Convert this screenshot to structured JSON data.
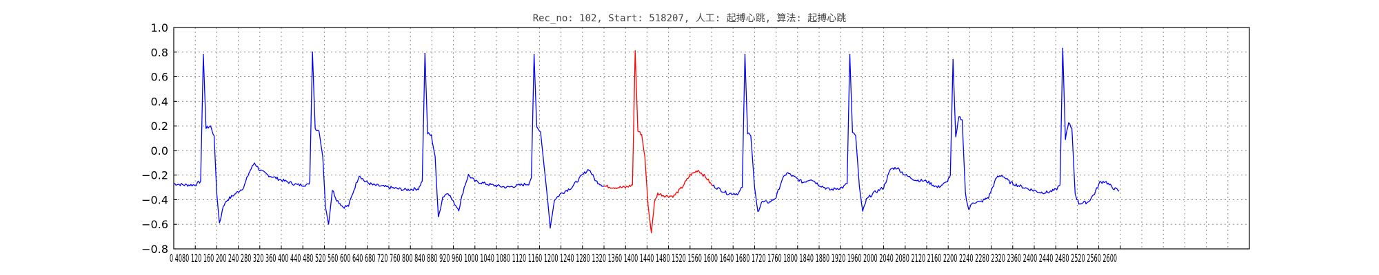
{
  "chart_data": {
    "type": "line",
    "title": "Rec_no: 102, Start: 518207, 人工: 起搏心跳, 算法: 起搏心跳",
    "xlabel": "",
    "ylabel": "",
    "xlim": [
      0,
      2000
    ],
    "ylim": [
      -0.8,
      1.0
    ],
    "grid": true,
    "yticks": [
      1.0,
      0.8,
      0.6,
      0.4,
      0.2,
      0.0,
      -0.2,
      -0.4,
      -0.6,
      -0.8
    ],
    "ytick_labels": [
      "1.0",
      "0.8",
      "0.6",
      "0.4",
      "0.2",
      "0.0",
      "−0.2",
      "−0.4",
      "−0.6",
      "−0.8"
    ],
    "xtick_step": 40,
    "xticks_max": 1760,
    "xtick_text": "0 4080 120 160 200 240 280 320 360 400 440 480 520 560 600 640 680 720 760 800 840 880 920 960 1000 1040 1080 1120 1160 1200 1240 1280 1320 1360 1400 1440 1480 1520 1560 1600 1640 1680 1720 1760 1800 1840 1880 1920 1960 2000 2040 2080 2120 2160 2200 2240 2280 2320 2360 2400 2440 2480 2520 2560 2600",
    "colors": {
      "series": "#0000ff",
      "highlight": "#ff0000"
    },
    "highlight_range": [
      800,
      1000
    ],
    "beats_x": [
      55,
      258,
      467,
      670,
      858,
      1062,
      1257,
      1449,
      1653
    ],
    "points": [
      [
        0,
        -0.27
      ],
      [
        20,
        -0.28
      ],
      [
        40,
        -0.28
      ],
      [
        50,
        -0.25
      ],
      [
        55,
        0.78
      ],
      [
        60,
        0.18
      ],
      [
        68,
        0.2
      ],
      [
        75,
        0.12
      ],
      [
        80,
        -0.35
      ],
      [
        85,
        -0.6
      ],
      [
        92,
        -0.45
      ],
      [
        100,
        -0.4
      ],
      [
        115,
        -0.35
      ],
      [
        130,
        -0.3
      ],
      [
        140,
        -0.18
      ],
      [
        150,
        -0.1
      ],
      [
        160,
        -0.16
      ],
      [
        175,
        -0.2
      ],
      [
        200,
        -0.24
      ],
      [
        230,
        -0.28
      ],
      [
        250,
        -0.28
      ],
      [
        253,
        -0.25
      ],
      [
        258,
        0.8
      ],
      [
        263,
        0.18
      ],
      [
        270,
        0.16
      ],
      [
        277,
        -0.05
      ],
      [
        282,
        -0.45
      ],
      [
        288,
        -0.6
      ],
      [
        295,
        -0.32
      ],
      [
        303,
        -0.4
      ],
      [
        315,
        -0.46
      ],
      [
        325,
        -0.45
      ],
      [
        335,
        -0.32
      ],
      [
        345,
        -0.2
      ],
      [
        355,
        -0.25
      ],
      [
        370,
        -0.28
      ],
      [
        400,
        -0.3
      ],
      [
        430,
        -0.32
      ],
      [
        455,
        -0.31
      ],
      [
        462,
        -0.25
      ],
      [
        467,
        0.79
      ],
      [
        472,
        0.14
      ],
      [
        479,
        0.12
      ],
      [
        486,
        -0.05
      ],
      [
        492,
        -0.55
      ],
      [
        500,
        -0.38
      ],
      [
        510,
        -0.34
      ],
      [
        520,
        -0.42
      ],
      [
        530,
        -0.48
      ],
      [
        540,
        -0.3
      ],
      [
        548,
        -0.2
      ],
      [
        560,
        -0.25
      ],
      [
        590,
        -0.28
      ],
      [
        620,
        -0.3
      ],
      [
        660,
        -0.27
      ],
      [
        665,
        -0.22
      ],
      [
        670,
        0.78
      ],
      [
        675,
        0.18
      ],
      [
        682,
        0.15
      ],
      [
        688,
        -0.1
      ],
      [
        694,
        -0.35
      ],
      [
        700,
        -0.62
      ],
      [
        708,
        -0.4
      ],
      [
        720,
        -0.35
      ],
      [
        740,
        -0.3
      ],
      [
        760,
        -0.2
      ],
      [
        772,
        -0.15
      ],
      [
        785,
        -0.25
      ],
      [
        800,
        -0.29
      ],
      [
        820,
        -0.3
      ],
      [
        840,
        -0.3
      ],
      [
        853,
        -0.28
      ],
      [
        858,
        0.81
      ],
      [
        863,
        0.16
      ],
      [
        870,
        0.13
      ],
      [
        876,
        -0.05
      ],
      [
        882,
        -0.45
      ],
      [
        888,
        -0.67
      ],
      [
        894,
        -0.42
      ],
      [
        900,
        -0.35
      ],
      [
        915,
        -0.37
      ],
      [
        930,
        -0.37
      ],
      [
        945,
        -0.3
      ],
      [
        960,
        -0.2
      ],
      [
        975,
        -0.16
      ],
      [
        990,
        -0.22
      ],
      [
        1000,
        -0.28
      ],
      [
        1030,
        -0.35
      ],
      [
        1050,
        -0.35
      ],
      [
        1057,
        -0.3
      ],
      [
        1062,
        0.78
      ],
      [
        1067,
        0.14
      ],
      [
        1073,
        0.12
      ],
      [
        1080,
        -0.3
      ],
      [
        1086,
        -0.5
      ],
      [
        1093,
        -0.42
      ],
      [
        1108,
        -0.42
      ],
      [
        1120,
        -0.38
      ],
      [
        1130,
        -0.25
      ],
      [
        1140,
        -0.18
      ],
      [
        1155,
        -0.22
      ],
      [
        1170,
        -0.26
      ],
      [
        1185,
        -0.23
      ],
      [
        1200,
        -0.28
      ],
      [
        1220,
        -0.32
      ],
      [
        1244,
        -0.3
      ],
      [
        1252,
        -0.27
      ],
      [
        1257,
        0.78
      ],
      [
        1262,
        0.15
      ],
      [
        1268,
        0.12
      ],
      [
        1275,
        -0.3
      ],
      [
        1281,
        -0.5
      ],
      [
        1288,
        -0.4
      ],
      [
        1300,
        -0.35
      ],
      [
        1320,
        -0.3
      ],
      [
        1333,
        -0.15
      ],
      [
        1345,
        -0.14
      ],
      [
        1360,
        -0.2
      ],
      [
        1380,
        -0.24
      ],
      [
        1400,
        -0.25
      ],
      [
        1420,
        -0.3
      ],
      [
        1437,
        -0.26
      ],
      [
        1444,
        -0.2
      ],
      [
        1449,
        0.74
      ],
      [
        1454,
        0.1
      ],
      [
        1460,
        0.27
      ],
      [
        1466,
        0.25
      ],
      [
        1472,
        -0.35
      ],
      [
        1478,
        -0.48
      ],
      [
        1486,
        -0.42
      ],
      [
        1500,
        -0.42
      ],
      [
        1515,
        -0.38
      ],
      [
        1530,
        -0.22
      ],
      [
        1540,
        -0.2
      ],
      [
        1555,
        -0.26
      ],
      [
        1580,
        -0.3
      ],
      [
        1610,
        -0.34
      ],
      [
        1625,
        -0.34
      ],
      [
        1640,
        -0.32
      ],
      [
        1648,
        -0.28
      ],
      [
        1653,
        0.83
      ],
      [
        1658,
        0.1
      ],
      [
        1664,
        0.22
      ],
      [
        1670,
        0.18
      ],
      [
        1676,
        -0.35
      ],
      [
        1683,
        -0.43
      ],
      [
        1700,
        -0.42
      ],
      [
        1712,
        -0.35
      ],
      [
        1722,
        -0.26
      ],
      [
        1732,
        -0.25
      ],
      [
        1745,
        -0.3
      ],
      [
        1758,
        -0.33
      ]
    ]
  }
}
